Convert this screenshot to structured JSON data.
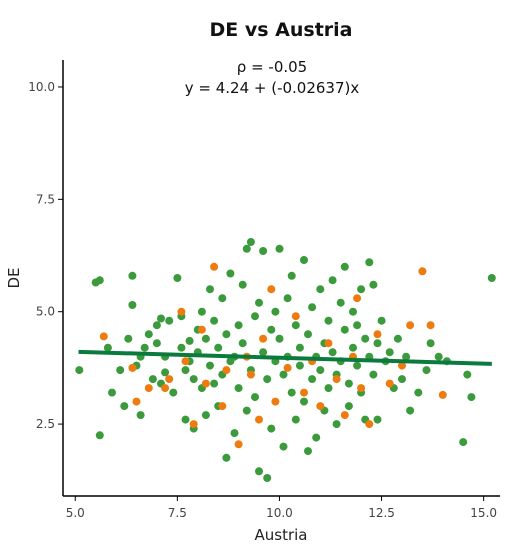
{
  "chart_data": {
    "type": "scatter",
    "title": "DE vs Austria",
    "xlabel": "Austria",
    "ylabel": "DE",
    "xlim": [
      4.7,
      15.4
    ],
    "ylim": [
      0.9,
      10.6
    ],
    "xticks": [
      5.0,
      7.5,
      10.0,
      12.5,
      15.0
    ],
    "xtick_labels": [
      "5.0",
      "7.5",
      "10.0",
      "12.5",
      "15.0"
    ],
    "yticks": [
      2.5,
      5.0,
      7.5,
      10.0
    ],
    "ytick_labels": [
      "2.5",
      "5.0",
      "7.5",
      "10.0"
    ],
    "grid": false,
    "annotations": [
      "ρ = -0.05",
      "y = 4.24 + (-0.02637)x"
    ],
    "regression": {
      "intercept": 4.24,
      "slope": -0.02637,
      "x_range": [
        5.08,
        15.2
      ],
      "color": "#0b7a3e"
    },
    "colors": {
      "green": "#3a9a3c",
      "orange": "#ee7b10"
    },
    "series": [
      {
        "color": "#3a9a3c",
        "points": [
          [
            5.1,
            3.7
          ],
          [
            5.5,
            5.65
          ],
          [
            5.6,
            5.7
          ],
          [
            5.6,
            2.25
          ],
          [
            5.8,
            4.2
          ],
          [
            5.9,
            3.2
          ],
          [
            6.1,
            3.7
          ],
          [
            6.2,
            2.9
          ],
          [
            6.3,
            4.4
          ],
          [
            6.4,
            5.8
          ],
          [
            6.4,
            5.15
          ],
          [
            6.5,
            3.8
          ],
          [
            6.6,
            4.0
          ],
          [
            6.6,
            2.7
          ],
          [
            6.7,
            4.2
          ],
          [
            6.8,
            4.5
          ],
          [
            6.9,
            3.5
          ],
          [
            7.0,
            4.7
          ],
          [
            7.0,
            4.3
          ],
          [
            7.1,
            4.85
          ],
          [
            7.1,
            3.4
          ],
          [
            7.2,
            3.65
          ],
          [
            7.2,
            4.0
          ],
          [
            7.3,
            4.8
          ],
          [
            7.4,
            3.2
          ],
          [
            7.5,
            5.75
          ],
          [
            7.6,
            4.9
          ],
          [
            7.6,
            4.2
          ],
          [
            7.7,
            3.7
          ],
          [
            7.7,
            2.6
          ],
          [
            7.8,
            4.35
          ],
          [
            7.8,
            3.9
          ],
          [
            7.9,
            3.5
          ],
          [
            7.9,
            2.4
          ],
          [
            8.0,
            4.6
          ],
          [
            8.0,
            4.1
          ],
          [
            8.1,
            3.3
          ],
          [
            8.1,
            5.0
          ],
          [
            8.2,
            4.4
          ],
          [
            8.2,
            2.7
          ],
          [
            8.3,
            3.8
          ],
          [
            8.3,
            5.5
          ],
          [
            8.4,
            4.8
          ],
          [
            8.4,
            3.4
          ],
          [
            8.5,
            4.2
          ],
          [
            8.5,
            2.9
          ],
          [
            8.6,
            5.3
          ],
          [
            8.6,
            3.6
          ],
          [
            8.7,
            4.5
          ],
          [
            8.7,
            1.75
          ],
          [
            8.8,
            3.9
          ],
          [
            8.8,
            5.85
          ],
          [
            8.9,
            4.0
          ],
          [
            8.9,
            2.3
          ],
          [
            9.0,
            4.7
          ],
          [
            9.0,
            3.3
          ],
          [
            9.1,
            5.6
          ],
          [
            9.1,
            4.3
          ],
          [
            9.2,
            6.4
          ],
          [
            9.2,
            2.8
          ],
          [
            9.3,
            3.7
          ],
          [
            9.3,
            6.55
          ],
          [
            9.4,
            4.9
          ],
          [
            9.4,
            3.1
          ],
          [
            9.5,
            5.2
          ],
          [
            9.5,
            1.45
          ],
          [
            9.6,
            4.1
          ],
          [
            9.6,
            6.35
          ],
          [
            9.7,
            3.5
          ],
          [
            9.7,
            1.3
          ],
          [
            9.8,
            4.6
          ],
          [
            9.8,
            2.4
          ],
          [
            9.9,
            5.0
          ],
          [
            9.9,
            3.9
          ],
          [
            10.0,
            4.4
          ],
          [
            10.0,
            6.4
          ],
          [
            10.1,
            3.6
          ],
          [
            10.1,
            2.0
          ],
          [
            10.2,
            5.3
          ],
          [
            10.2,
            4.0
          ],
          [
            10.3,
            3.2
          ],
          [
            10.3,
            5.8
          ],
          [
            10.4,
            4.7
          ],
          [
            10.4,
            2.6
          ],
          [
            10.5,
            4.2
          ],
          [
            10.5,
            3.8
          ],
          [
            10.6,
            6.15
          ],
          [
            10.6,
            3.0
          ],
          [
            10.7,
            4.5
          ],
          [
            10.7,
            1.9
          ],
          [
            10.8,
            5.1
          ],
          [
            10.8,
            3.5
          ],
          [
            10.9,
            4.0
          ],
          [
            10.9,
            2.2
          ],
          [
            11.0,
            5.5
          ],
          [
            11.0,
            3.7
          ],
          [
            11.1,
            4.3
          ],
          [
            11.1,
            2.8
          ],
          [
            11.2,
            4.8
          ],
          [
            11.2,
            3.3
          ],
          [
            11.3,
            5.7
          ],
          [
            11.3,
            4.1
          ],
          [
            11.4,
            3.6
          ],
          [
            11.4,
            2.5
          ],
          [
            11.5,
            5.2
          ],
          [
            11.5,
            3.9
          ],
          [
            11.6,
            4.6
          ],
          [
            11.6,
            6.0
          ],
          [
            11.7,
            3.4
          ],
          [
            11.7,
            2.9
          ],
          [
            11.8,
            5.0
          ],
          [
            11.8,
            4.2
          ],
          [
            11.9,
            3.8
          ],
          [
            11.9,
            4.7
          ],
          [
            12.0,
            5.5
          ],
          [
            12.0,
            3.2
          ],
          [
            12.1,
            4.4
          ],
          [
            12.1,
            2.6
          ],
          [
            12.2,
            6.1
          ],
          [
            12.2,
            4.0
          ],
          [
            12.3,
            3.6
          ],
          [
            12.3,
            5.6
          ],
          [
            12.4,
            4.3
          ],
          [
            12.4,
            2.6
          ],
          [
            12.5,
            4.8
          ],
          [
            12.6,
            3.9
          ],
          [
            12.7,
            4.1
          ],
          [
            12.8,
            3.3
          ],
          [
            12.9,
            4.4
          ],
          [
            13.0,
            3.5
          ],
          [
            13.1,
            4.0
          ],
          [
            13.2,
            2.8
          ],
          [
            13.4,
            3.2
          ],
          [
            13.6,
            3.7
          ],
          [
            13.7,
            4.3
          ],
          [
            13.9,
            4.0
          ],
          [
            14.1,
            3.9
          ],
          [
            14.5,
            2.1
          ],
          [
            14.6,
            3.6
          ],
          [
            14.7,
            3.1
          ],
          [
            15.2,
            5.75
          ]
        ]
      },
      {
        "color": "#ee7b10",
        "points": [
          [
            5.7,
            4.45
          ],
          [
            6.4,
            3.75
          ],
          [
            6.5,
            3.0
          ],
          [
            6.8,
            3.3
          ],
          [
            7.2,
            3.3
          ],
          [
            7.3,
            3.5
          ],
          [
            7.6,
            5.0
          ],
          [
            7.7,
            3.9
          ],
          [
            7.9,
            2.5
          ],
          [
            8.1,
            4.6
          ],
          [
            8.2,
            3.4
          ],
          [
            8.4,
            6.0
          ],
          [
            8.6,
            2.9
          ],
          [
            8.7,
            3.7
          ],
          [
            9.0,
            2.05
          ],
          [
            9.2,
            4.0
          ],
          [
            9.3,
            3.6
          ],
          [
            9.5,
            2.6
          ],
          [
            9.6,
            4.4
          ],
          [
            9.8,
            5.5
          ],
          [
            9.9,
            3.0
          ],
          [
            10.2,
            3.75
          ],
          [
            10.4,
            4.9
          ],
          [
            10.6,
            3.2
          ],
          [
            10.8,
            3.9
          ],
          [
            11.0,
            2.9
          ],
          [
            11.2,
            4.3
          ],
          [
            11.4,
            3.5
          ],
          [
            11.6,
            2.7
          ],
          [
            11.8,
            4.0
          ],
          [
            11.9,
            5.3
          ],
          [
            12.0,
            3.3
          ],
          [
            12.2,
            2.5
          ],
          [
            12.4,
            4.5
          ],
          [
            12.7,
            3.4
          ],
          [
            13.0,
            3.8
          ],
          [
            13.2,
            4.7
          ],
          [
            13.5,
            5.9
          ],
          [
            13.7,
            4.7
          ],
          [
            14.0,
            3.15
          ]
        ]
      }
    ]
  }
}
